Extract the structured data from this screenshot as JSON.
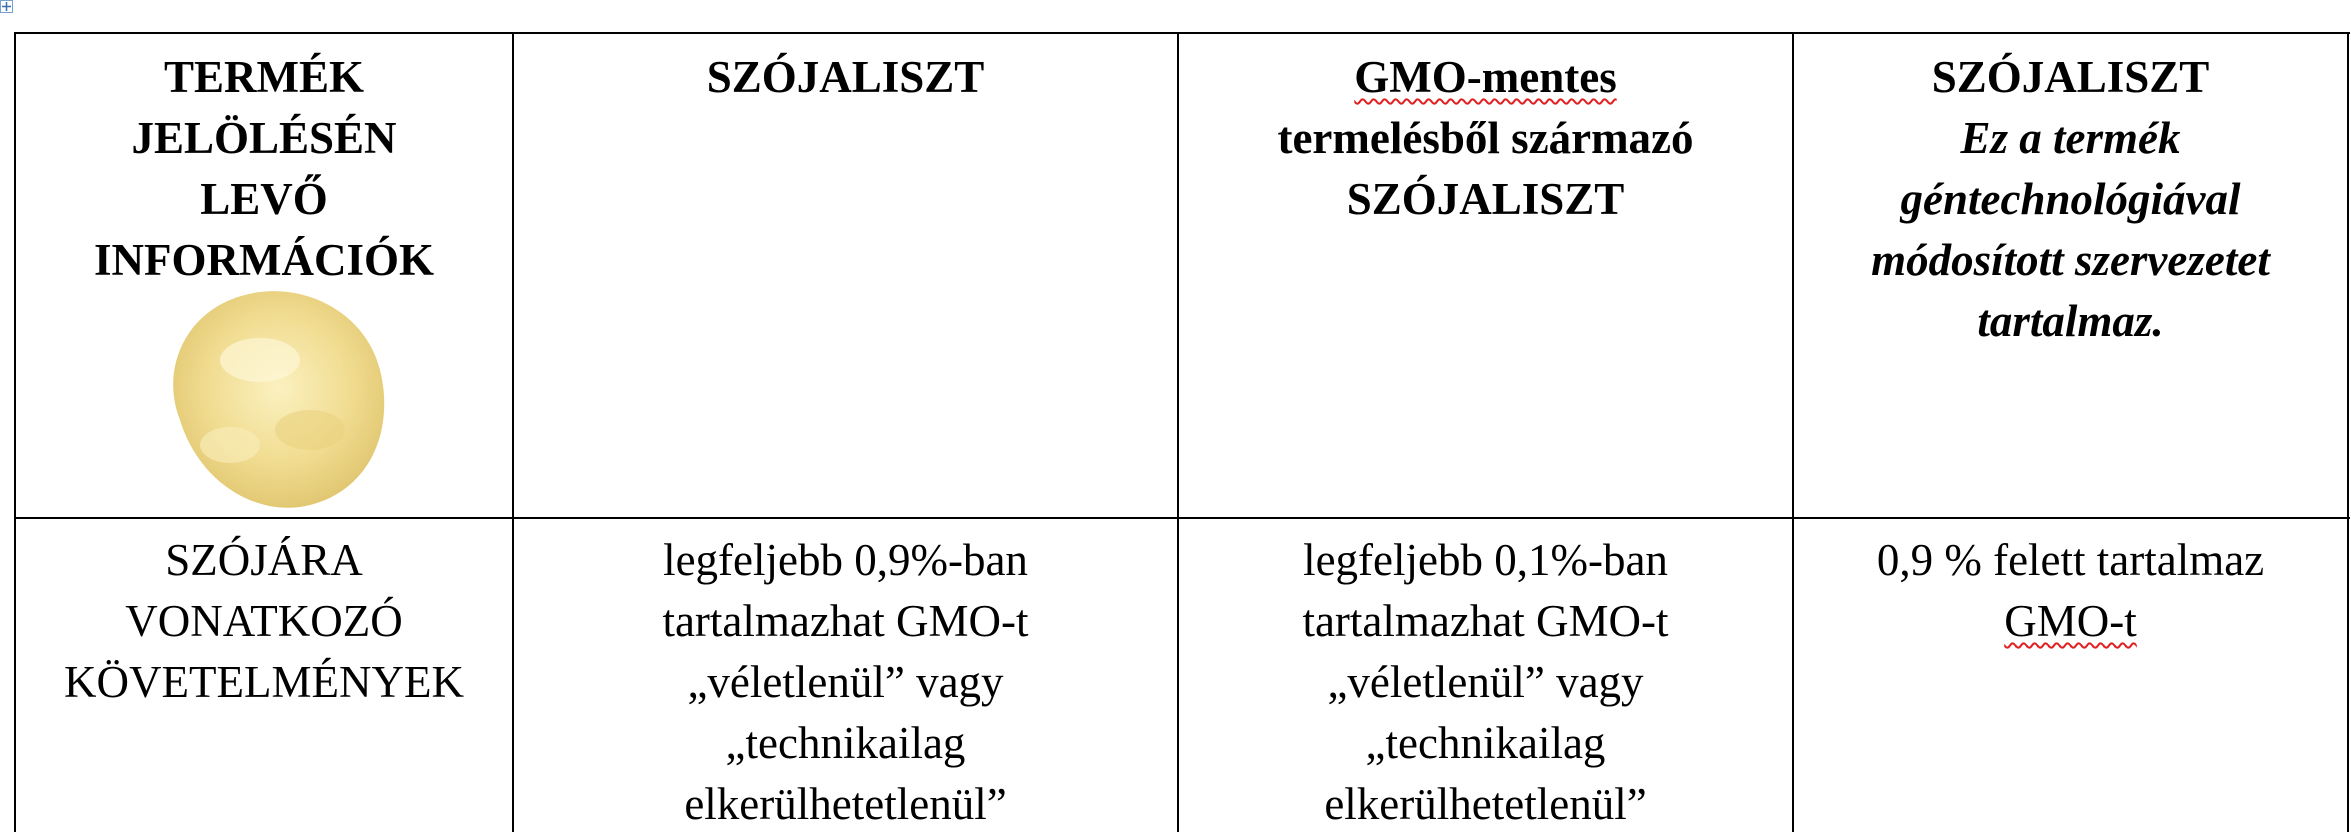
{
  "table": {
    "header": [
      {
        "lines": [
          "TERMÉK",
          "JELÖLÉSÉN",
          "LEVŐ",
          "INFORMÁCIÓK"
        ]
      },
      {
        "lines": [
          "SZÓJALISZT"
        ]
      },
      {
        "lines": [
          "GMO-mentes",
          "termelésből származó",
          "SZÓJALISZT"
        ]
      },
      {
        "lines": [
          "SZÓJALISZT"
        ],
        "note_lines": [
          "Ez a termék",
          "géntechnológiával",
          "módosított szervezetet",
          "tartalmaz."
        ]
      }
    ],
    "rows": [
      [
        {
          "lines": [
            "SZÓJÁRA",
            "VONATKOZÓ",
            "KÖVETELMÉNYEK"
          ]
        },
        {
          "lines": [
            "legfeljebb 0,9%-ban",
            "tartalmazhat GMO-t",
            "„véletlenül” vagy",
            "„technikailag",
            "elkerülhetetlenül”"
          ]
        },
        {
          "lines": [
            "legfeljebb 0,1%-ban",
            "tartalmazhat GMO-t",
            "„véletlenül” vagy",
            "„technikailag",
            "elkerülhetetlenül”"
          ]
        },
        {
          "lines": [
            "0,9 % felett tartalmaz",
            "GMO-t"
          ]
        }
      ]
    ]
  }
}
